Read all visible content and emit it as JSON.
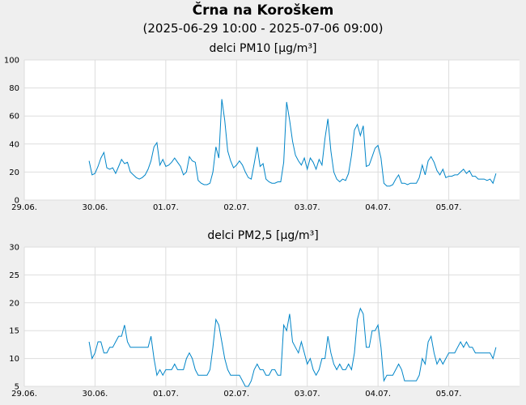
{
  "header": {
    "title": "Črna na Koroškem",
    "subtitle": "(2025-06-29 10:00 - 2025-07-06 09:00)"
  },
  "colors": {
    "line": "#0085c8",
    "grid": "#dddddd",
    "panel": "#ffffff",
    "background": "#efefef"
  },
  "chart_data": [
    {
      "type": "line",
      "title": "delci PM10 [µg/m³]",
      "xlabel": "",
      "ylabel": "",
      "x_tick_labels": [
        "29.06.",
        "30.06.",
        "01.07.",
        "02.07.",
        "03.07.",
        "04.07.",
        "05.07."
      ],
      "x_range_hours": [
        0,
        168
      ],
      "ylim": [
        0,
        100
      ],
      "y_ticks": [
        0,
        20,
        40,
        60,
        80,
        100
      ],
      "grid": true,
      "series": [
        {
          "name": "PM10",
          "points": [
            [
              22,
              28
            ],
            [
              23,
              18
            ],
            [
              24,
              19
            ],
            [
              25,
              24
            ],
            [
              26,
              30
            ],
            [
              27,
              34
            ],
            [
              28,
              23
            ],
            [
              29,
              22
            ],
            [
              30,
              23
            ],
            [
              31,
              19
            ],
            [
              32,
              24
            ],
            [
              33,
              29
            ],
            [
              34,
              26
            ],
            [
              35,
              27
            ],
            [
              36,
              20
            ],
            [
              37,
              18
            ],
            [
              38,
              16
            ],
            [
              39,
              15
            ],
            [
              40,
              16
            ],
            [
              41,
              18
            ],
            [
              42,
              22
            ],
            [
              43,
              28
            ],
            [
              44,
              38
            ],
            [
              45,
              41
            ],
            [
              46,
              25
            ],
            [
              47,
              29
            ],
            [
              48,
              24
            ],
            [
              49,
              25
            ],
            [
              50,
              27
            ],
            [
              51,
              30
            ],
            [
              52,
              27
            ],
            [
              53,
              24
            ],
            [
              54,
              18
            ],
            [
              55,
              20
            ],
            [
              56,
              31
            ],
            [
              57,
              28
            ],
            [
              58,
              27
            ],
            [
              59,
              14
            ],
            [
              60,
              12
            ],
            [
              61,
              11
            ],
            [
              62,
              11
            ],
            [
              63,
              12
            ],
            [
              64,
              20
            ],
            [
              65,
              38
            ],
            [
              66,
              30
            ],
            [
              67,
              72
            ],
            [
              68,
              57
            ],
            [
              69,
              35
            ],
            [
              70,
              28
            ],
            [
              71,
              23
            ],
            [
              72,
              25
            ],
            [
              73,
              28
            ],
            [
              74,
              25
            ],
            [
              75,
              20
            ],
            [
              76,
              16
            ],
            [
              77,
              15
            ],
            [
              78,
              26
            ],
            [
              79,
              38
            ],
            [
              80,
              24
            ],
            [
              81,
              26
            ],
            [
              82,
              15
            ],
            [
              83,
              13
            ],
            [
              84,
              12
            ],
            [
              85,
              12
            ],
            [
              86,
              13
            ],
            [
              87,
              13
            ],
            [
              88,
              27
            ],
            [
              89,
              70
            ],
            [
              90,
              57
            ],
            [
              91,
              42
            ],
            [
              92,
              32
            ],
            [
              93,
              28
            ],
            [
              94,
              25
            ],
            [
              95,
              30
            ],
            [
              96,
              22
            ],
            [
              97,
              30
            ],
            [
              98,
              27
            ],
            [
              99,
              22
            ],
            [
              100,
              29
            ],
            [
              101,
              25
            ],
            [
              102,
              44
            ],
            [
              103,
              58
            ],
            [
              104,
              35
            ],
            [
              105,
              20
            ],
            [
              106,
              15
            ],
            [
              107,
              13
            ],
            [
              108,
              15
            ],
            [
              109,
              14
            ],
            [
              110,
              19
            ],
            [
              111,
              32
            ],
            [
              112,
              50
            ],
            [
              113,
              54
            ],
            [
              114,
              46
            ],
            [
              115,
              53
            ],
            [
              116,
              24
            ],
            [
              117,
              25
            ],
            [
              118,
              31
            ],
            [
              119,
              37
            ],
            [
              120,
              39
            ],
            [
              121,
              30
            ],
            [
              122,
              12
            ],
            [
              123,
              10
            ],
            [
              124,
              10
            ],
            [
              125,
              11
            ],
            [
              126,
              15
            ],
            [
              127,
              18
            ],
            [
              128,
              12
            ],
            [
              129,
              12
            ],
            [
              130,
              11
            ],
            [
              131,
              12
            ],
            [
              132,
              12
            ],
            [
              133,
              12
            ],
            [
              134,
              16
            ],
            [
              135,
              25
            ],
            [
              136,
              18
            ],
            [
              137,
              28
            ],
            [
              138,
              31
            ],
            [
              139,
              27
            ],
            [
              140,
              21
            ],
            [
              141,
              18
            ],
            [
              142,
              22
            ],
            [
              143,
              16
            ],
            [
              144,
              17
            ],
            [
              145,
              17
            ],
            [
              146,
              18
            ],
            [
              147,
              18
            ],
            [
              148,
              20
            ],
            [
              149,
              22
            ],
            [
              150,
              19
            ],
            [
              151,
              21
            ],
            [
              152,
              17
            ],
            [
              153,
              17
            ],
            [
              154,
              15
            ],
            [
              155,
              15
            ],
            [
              156,
              15
            ],
            [
              157,
              14
            ],
            [
              158,
              15
            ],
            [
              159,
              12
            ],
            [
              160,
              19
            ]
          ]
        }
      ]
    },
    {
      "type": "line",
      "title": "delci PM2,5 [µg/m³]",
      "xlabel": "",
      "ylabel": "",
      "x_tick_labels": [
        "29.06.",
        "30.06.",
        "01.07.",
        "02.07.",
        "03.07.",
        "04.07.",
        "05.07."
      ],
      "x_range_hours": [
        0,
        168
      ],
      "ylim": [
        5,
        30
      ],
      "y_ticks": [
        5,
        10,
        15,
        20,
        25,
        30
      ],
      "grid": true,
      "series": [
        {
          "name": "PM2,5",
          "points": [
            [
              22,
              13
            ],
            [
              23,
              10
            ],
            [
              24,
              11
            ],
            [
              25,
              13
            ],
            [
              26,
              13
            ],
            [
              27,
              11
            ],
            [
              28,
              11
            ],
            [
              29,
              12
            ],
            [
              30,
              12
            ],
            [
              31,
              13
            ],
            [
              32,
              14
            ],
            [
              33,
              14
            ],
            [
              34,
              16
            ],
            [
              35,
              13
            ],
            [
              36,
              12
            ],
            [
              37,
              12
            ],
            [
              38,
              12
            ],
            [
              39,
              12
            ],
            [
              40,
              12
            ],
            [
              41,
              12
            ],
            [
              42,
              12
            ],
            [
              43,
              14
            ],
            [
              44,
              10
            ],
            [
              45,
              7
            ],
            [
              46,
              8
            ],
            [
              47,
              7
            ],
            [
              48,
              8
            ],
            [
              49,
              8
            ],
            [
              50,
              8
            ],
            [
              51,
              9
            ],
            [
              52,
              8
            ],
            [
              53,
              8
            ],
            [
              54,
              8
            ],
            [
              55,
              10
            ],
            [
              56,
              11
            ],
            [
              57,
              10
            ],
            [
              58,
              8
            ],
            [
              59,
              7
            ],
            [
              60,
              7
            ],
            [
              61,
              7
            ],
            [
              62,
              7
            ],
            [
              63,
              8
            ],
            [
              64,
              12
            ],
            [
              65,
              17
            ],
            [
              66,
              16
            ],
            [
              67,
              13
            ],
            [
              68,
              10
            ],
            [
              69,
              8
            ],
            [
              70,
              7
            ],
            [
              71,
              7
            ],
            [
              72,
              7
            ],
            [
              73,
              7
            ],
            [
              74,
              6
            ],
            [
              75,
              5
            ],
            [
              76,
              5
            ],
            [
              77,
              6
            ],
            [
              78,
              8
            ],
            [
              79,
              9
            ],
            [
              80,
              8
            ],
            [
              81,
              8
            ],
            [
              82,
              7
            ],
            [
              83,
              7
            ],
            [
              84,
              8
            ],
            [
              85,
              8
            ],
            [
              86,
              7
            ],
            [
              87,
              7
            ],
            [
              88,
              16
            ],
            [
              89,
              15
            ],
            [
              90,
              18
            ],
            [
              91,
              13
            ],
            [
              92,
              12
            ],
            [
              93,
              11
            ],
            [
              94,
              13
            ],
            [
              95,
              11
            ],
            [
              96,
              9
            ],
            [
              97,
              10
            ],
            [
              98,
              8
            ],
            [
              99,
              7
            ],
            [
              100,
              8
            ],
            [
              101,
              10
            ],
            [
              102,
              10
            ],
            [
              103,
              14
            ],
            [
              104,
              11
            ],
            [
              105,
              9
            ],
            [
              106,
              8
            ],
            [
              107,
              9
            ],
            [
              108,
              8
            ],
            [
              109,
              8
            ],
            [
              110,
              9
            ],
            [
              111,
              8
            ],
            [
              112,
              11
            ],
            [
              113,
              17
            ],
            [
              114,
              19
            ],
            [
              115,
              18
            ],
            [
              116,
              12
            ],
            [
              117,
              12
            ],
            [
              118,
              15
            ],
            [
              119,
              15
            ],
            [
              120,
              16
            ],
            [
              121,
              12
            ],
            [
              122,
              6
            ],
            [
              123,
              7
            ],
            [
              124,
              7
            ],
            [
              125,
              7
            ],
            [
              126,
              8
            ],
            [
              127,
              9
            ],
            [
              128,
              8
            ],
            [
              129,
              6
            ],
            [
              130,
              6
            ],
            [
              131,
              6
            ],
            [
              132,
              6
            ],
            [
              133,
              6
            ],
            [
              134,
              7
            ],
            [
              135,
              10
            ],
            [
              136,
              9
            ],
            [
              137,
              13
            ],
            [
              138,
              14
            ],
            [
              139,
              11
            ],
            [
              140,
              9
            ],
            [
              141,
              10
            ],
            [
              142,
              9
            ],
            [
              143,
              10
            ],
            [
              144,
              11
            ],
            [
              145,
              11
            ],
            [
              146,
              11
            ],
            [
              147,
              12
            ],
            [
              148,
              13
            ],
            [
              149,
              12
            ],
            [
              150,
              13
            ],
            [
              151,
              12
            ],
            [
              152,
              12
            ],
            [
              153,
              11
            ],
            [
              154,
              11
            ],
            [
              155,
              11
            ],
            [
              156,
              11
            ],
            [
              157,
              11
            ],
            [
              158,
              11
            ],
            [
              159,
              10
            ],
            [
              160,
              12
            ]
          ]
        }
      ]
    }
  ]
}
